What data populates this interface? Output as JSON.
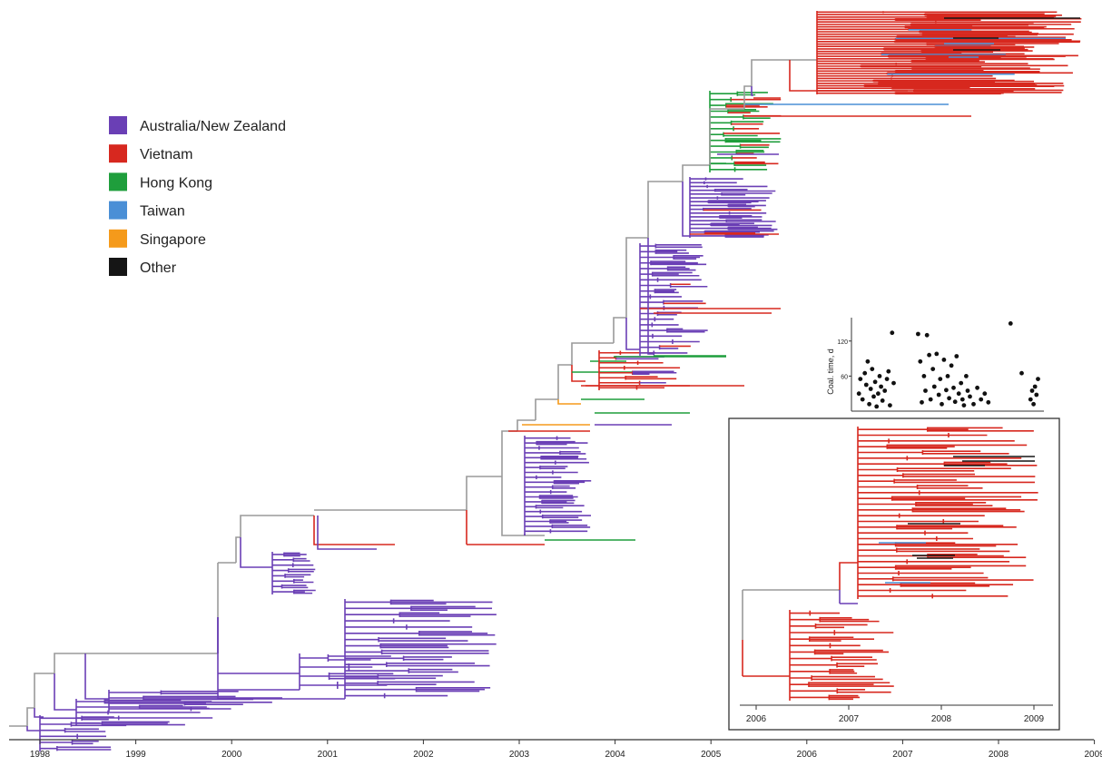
{
  "legend": {
    "items": [
      {
        "label": "Australia/New Zealand",
        "color": "#6a3fb5"
      },
      {
        "label": "Vietnam",
        "color": "#d7281f"
      },
      {
        "label": "Hong Kong",
        "color": "#1f9e3c"
      },
      {
        "label": "Taiwan",
        "color": "#4a8fd6"
      },
      {
        "label": "Singapore",
        "color": "#f59a1b"
      },
      {
        "label": "Other",
        "color": "#151515"
      }
    ]
  },
  "colors": {
    "backbone": "#9a9a9a",
    "axis": "#333333"
  },
  "main_axis": {
    "ticks": [
      "1998",
      "1999",
      "2000",
      "2001",
      "2002",
      "2003",
      "2004",
      "2005",
      "2006",
      "2007",
      "2008",
      "2009"
    ]
  },
  "inset_tree": {
    "ticks": [
      "2006",
      "2007",
      "2008",
      "2009"
    ]
  },
  "scatter": {
    "ylabel": "Coal. time, d",
    "yticks": [
      "60",
      "120"
    ],
    "points": [
      [
        2006.5,
        30
      ],
      [
        2006.52,
        55
      ],
      [
        2006.55,
        20
      ],
      [
        2006.58,
        65
      ],
      [
        2006.6,
        45
      ],
      [
        2006.62,
        85
      ],
      [
        2006.64,
        12
      ],
      [
        2006.66,
        38
      ],
      [
        2006.68,
        72
      ],
      [
        2006.7,
        25
      ],
      [
        2006.72,
        50
      ],
      [
        2006.74,
        8
      ],
      [
        2006.76,
        30
      ],
      [
        2006.78,
        60
      ],
      [
        2006.8,
        42
      ],
      [
        2006.82,
        18
      ],
      [
        2006.85,
        35
      ],
      [
        2006.88,
        55
      ],
      [
        2006.9,
        68
      ],
      [
        2006.92,
        10
      ],
      [
        2006.95,
        134
      ],
      [
        2006.97,
        48
      ],
      [
        2007.3,
        132
      ],
      [
        2007.33,
        85
      ],
      [
        2007.35,
        15
      ],
      [
        2007.38,
        60
      ],
      [
        2007.4,
        35
      ],
      [
        2007.42,
        130
      ],
      [
        2007.45,
        96
      ],
      [
        2007.47,
        20
      ],
      [
        2007.5,
        72
      ],
      [
        2007.52,
        42
      ],
      [
        2007.55,
        98
      ],
      [
        2007.58,
        28
      ],
      [
        2007.6,
        55
      ],
      [
        2007.62,
        12
      ],
      [
        2007.65,
        88
      ],
      [
        2007.68,
        36
      ],
      [
        2007.7,
        60
      ],
      [
        2007.72,
        22
      ],
      [
        2007.75,
        78
      ],
      [
        2007.78,
        40
      ],
      [
        2007.8,
        16
      ],
      [
        2007.82,
        94
      ],
      [
        2007.85,
        30
      ],
      [
        2007.88,
        48
      ],
      [
        2007.9,
        20
      ],
      [
        2007.92,
        10
      ],
      [
        2007.95,
        60
      ],
      [
        2007.97,
        35
      ],
      [
        2008.0,
        25
      ],
      [
        2008.05,
        12
      ],
      [
        2008.1,
        40
      ],
      [
        2008.15,
        20
      ],
      [
        2008.2,
        30
      ],
      [
        2008.25,
        15
      ],
      [
        2008.55,
        150
      ],
      [
        2008.7,
        65
      ],
      [
        2008.82,
        20
      ],
      [
        2008.84,
        35
      ],
      [
        2008.86,
        12
      ],
      [
        2008.88,
        42
      ],
      [
        2008.9,
        28
      ],
      [
        2008.92,
        55
      ]
    ]
  }
}
